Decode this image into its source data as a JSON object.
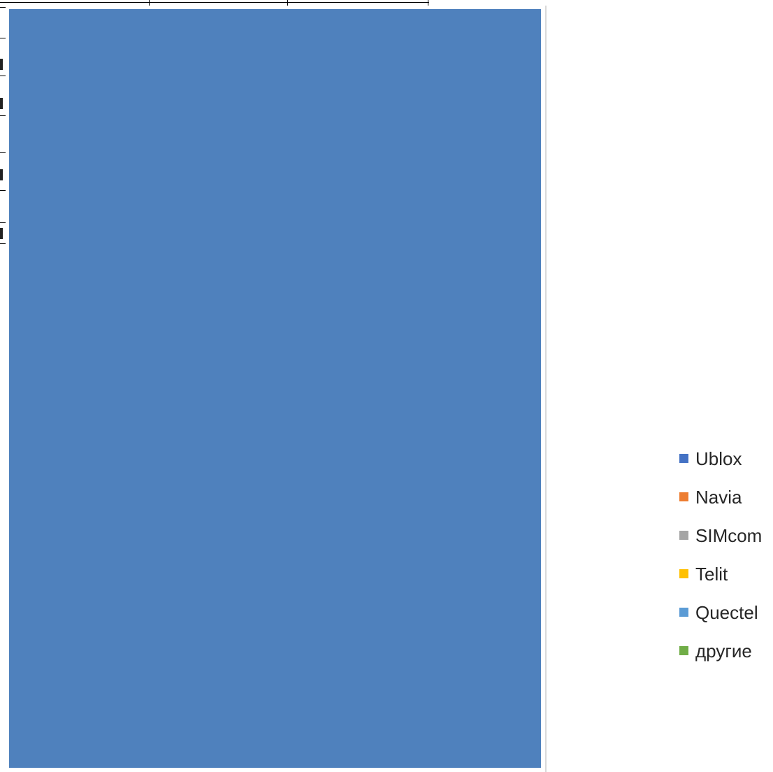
{
  "chart_data": {
    "type": "pie",
    "title": "",
    "categories": [
      "Ublox",
      "Navia",
      "SIMcom",
      "Telit",
      "Quectel",
      "другие"
    ],
    "colors": [
      "#4472c4",
      "#ed7d31",
      "#a5a5a5",
      "#ffc000",
      "#5b9bd5",
      "#70ad47"
    ],
    "legend_position": "right"
  },
  "plot_fill_color": "#4f81bd"
}
